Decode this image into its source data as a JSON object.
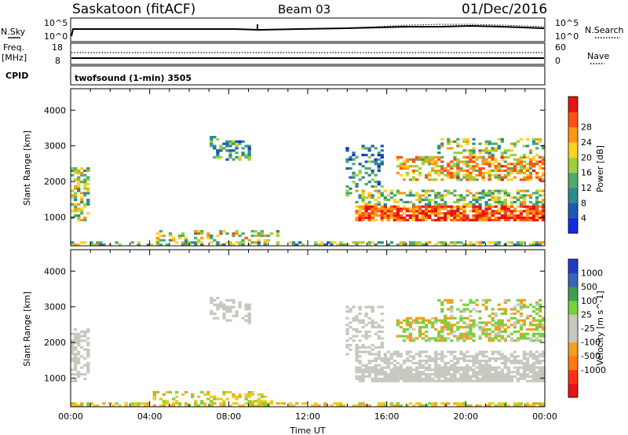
{
  "header": {
    "station": "Saskatoon (fitACF)",
    "beam": "Beam 03",
    "date": "01/Dec/2016"
  },
  "summary": {
    "nsky_label": "N.Sky",
    "nsearch_label": "N.Search",
    "nsky_ticks": [
      "10^5",
      "10^0"
    ],
    "nsky_ticks_right": [
      "10^5",
      "10^0"
    ],
    "freq_label": "Freq.",
    "freq_unit": "[MHz]",
    "freq_ticks": [
      "18",
      "8"
    ],
    "nave_label": "Nave",
    "nave_ticks": [
      "60",
      "0"
    ],
    "cpid_label": "CPID",
    "cpid_text": "twofsound (1-min) 3505"
  },
  "chart_data": [
    {
      "type": "heatmap",
      "name": "power",
      "ylabel": "Slant Range [km]",
      "xlabel": "Time UT",
      "x_ticks": [
        "00:00",
        "04:00",
        "08:00",
        "12:00",
        "16:00",
        "20:00",
        "00:00"
      ],
      "y_ticks": [
        "1000",
        "2000",
        "3000",
        "4000"
      ],
      "ylim": [
        200,
        4600
      ],
      "xlim_hours": [
        0,
        24
      ],
      "colorbar": {
        "label": "Power [dB]",
        "ticks": [
          "4",
          "8",
          "12",
          "16",
          "20",
          "24",
          "28"
        ],
        "range": [
          0,
          30
        ],
        "colors": [
          "#1428e6",
          "#1e5ab4",
          "#2d8c8c",
          "#50aa6e",
          "#9bd23c",
          "#ffd21e",
          "#ff9614",
          "#ff5014",
          "#e61414"
        ]
      }
    },
    {
      "type": "heatmap",
      "name": "velocity",
      "ylabel": "Slant Range [km]",
      "xlabel": "Time UT",
      "x_ticks": [
        "00:00",
        "04:00",
        "08:00",
        "12:00",
        "16:00",
        "20:00",
        "00:00"
      ],
      "y_ticks": [
        "1000",
        "2000",
        "3000",
        "4000"
      ],
      "ylim": [
        200,
        4600
      ],
      "xlim_hours": [
        0,
        24
      ],
      "colorbar": {
        "label": "Velocity [m s^-1]",
        "ticks": [
          "1000",
          "500",
          "100",
          "25",
          "-25",
          "-100",
          "-500",
          "-1000"
        ],
        "colors": [
          "#1e3cc8",
          "#3c64b4",
          "#3ca050",
          "#78d23c",
          "#c8c8c0",
          "#c8c8c0",
          "#f0a01e",
          "#ff7814",
          "#ff3214",
          "#e61414"
        ]
      }
    }
  ]
}
